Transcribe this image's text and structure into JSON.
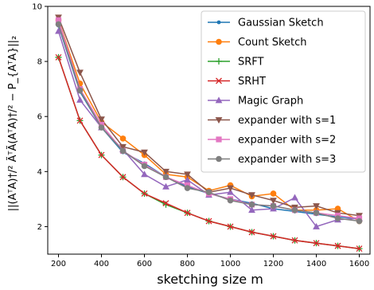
{
  "chart_data": {
    "type": "line",
    "xlabel": "sketching size m",
    "ylabel": "||(AᵀA)†/² ÃᵀÃ(AᵀA)†/² − P_{AᵀA}||₂",
    "xlim": [
      150,
      1650
    ],
    "ylim": [
      1.0,
      10.0
    ],
    "xticks": [
      200,
      400,
      600,
      800,
      1000,
      1200,
      1400,
      1600
    ],
    "yticks": [
      2,
      4,
      6,
      8,
      10
    ],
    "grid": false,
    "legend_position": "top-right",
    "x": [
      200,
      300,
      400,
      500,
      600,
      700,
      800,
      900,
      1000,
      1100,
      1200,
      1300,
      1400,
      1500,
      1600
    ],
    "series": [
      {
        "name": "Gaussian Sketch",
        "color": "#1f77b4",
        "marker": "dot",
        "values": [
          9.3,
          6.9,
          5.6,
          4.7,
          4.3,
          3.8,
          3.45,
          3.2,
          3.0,
          2.85,
          2.65,
          2.55,
          2.45,
          2.35,
          2.3
        ]
      },
      {
        "name": "Count Sketch",
        "color": "#ff7f0e",
        "marker": "circle",
        "values": [
          9.5,
          7.2,
          5.8,
          5.2,
          4.6,
          3.9,
          3.8,
          3.3,
          3.5,
          3.1,
          3.2,
          2.6,
          2.6,
          2.65,
          2.2
        ]
      },
      {
        "name": "SRFT",
        "color": "#2ca02c",
        "marker": "plus",
        "values": [
          8.15,
          5.85,
          4.6,
          3.8,
          3.2,
          2.8,
          2.5,
          2.2,
          2.0,
          1.8,
          1.65,
          1.5,
          1.4,
          1.3,
          1.2
        ]
      },
      {
        "name": "SRHT",
        "color": "#d62728",
        "marker": "x",
        "values": [
          8.15,
          5.85,
          4.6,
          3.8,
          3.2,
          2.85,
          2.5,
          2.2,
          2.0,
          1.8,
          1.65,
          1.5,
          1.4,
          1.3,
          1.2
        ]
      },
      {
        "name": "Magic Graph",
        "color": "#9467bd",
        "marker": "triangle-up",
        "values": [
          9.1,
          6.6,
          5.6,
          4.8,
          3.9,
          3.45,
          3.7,
          3.15,
          3.25,
          2.6,
          2.65,
          3.05,
          2.0,
          2.25,
          2.3
        ]
      },
      {
        "name": "expander with s=1",
        "color": "#8c564b",
        "marker": "triangle-down",
        "values": [
          9.6,
          7.6,
          5.9,
          4.9,
          4.7,
          4.0,
          3.9,
          3.25,
          3.4,
          3.15,
          2.95,
          2.7,
          2.75,
          2.5,
          2.4
        ]
      },
      {
        "name": "expander with s=2",
        "color": "#e377c2",
        "marker": "square",
        "values": [
          9.5,
          7.0,
          5.7,
          4.75,
          4.25,
          3.8,
          3.5,
          3.2,
          3.0,
          2.8,
          2.75,
          2.6,
          2.5,
          2.4,
          2.3
        ]
      },
      {
        "name": "expander with s=3",
        "color": "#7f7f7f",
        "marker": "circle",
        "values": [
          9.35,
          6.95,
          5.6,
          4.75,
          4.2,
          3.8,
          3.4,
          3.25,
          2.95,
          2.8,
          2.75,
          2.6,
          2.5,
          2.3,
          2.2
        ]
      }
    ]
  }
}
